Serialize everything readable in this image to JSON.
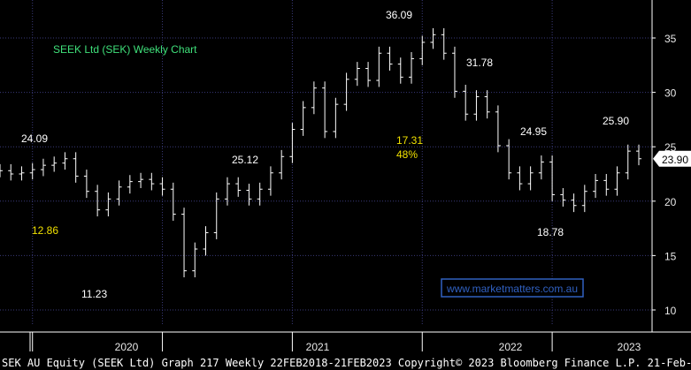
{
  "chart_data": {
    "type": "ohlc",
    "title": "SEEK Ltd (SEK) Weekly Chart",
    "watermark": "www.marketmatters.com.au",
    "footer": "SEK AU Equity (SEEK Ltd) Graph 217  Weekly 22FEB2018-21FEB2023 Copyright© 2023 Bloomberg Finance L.P. 21-Feb-2023 16:23:56",
    "ylim": [
      9,
      37
    ],
    "yticks": [
      10,
      15,
      20,
      25,
      30,
      35
    ],
    "ytick_labels": [
      "10",
      "15",
      "20",
      "25",
      "30",
      "35"
    ],
    "xtick_labels": [
      "2020",
      "2021",
      "2022",
      "2023"
    ],
    "last_price": 23.9,
    "last_price_label": "23.90",
    "colors": {
      "background": "#000000",
      "grid": "#3a3a7a",
      "bars": "#ffffff",
      "price_box": "#ffffff",
      "title": "#3fe07a",
      "highlight": "#f0e000",
      "watermark_border": "#3060c0",
      "watermark_text": "#3060c0"
    },
    "annotations": [
      {
        "text": "24.09",
        "color": "white",
        "x": "2019-04",
        "y": 24.09
      },
      {
        "text": "12.86",
        "color": "yellow",
        "x": "2019-05",
        "y": 12.86
      },
      {
        "text": "11.23",
        "color": "white",
        "x": "2020-03",
        "y": 11.23
      },
      {
        "text": "25.12",
        "color": "white",
        "x": "2020-09",
        "y": 25.12
      },
      {
        "text": "36.09",
        "color": "white",
        "x": "2021-07",
        "y": 36.09
      },
      {
        "text": "17.31",
        "color": "yellow",
        "x": "2021-07",
        "y": 17.31
      },
      {
        "text": "48%",
        "color": "yellow",
        "x": "2021-07",
        "y": 48
      },
      {
        "text": "31.78",
        "color": "white",
        "x": "2021-10",
        "y": 31.78
      },
      {
        "text": "24.95",
        "color": "white",
        "x": "2022-04",
        "y": 24.95
      },
      {
        "text": "18.78",
        "color": "white",
        "x": "2022-07",
        "y": 18.78
      },
      {
        "text": "25.90",
        "color": "white",
        "x": "2022-12",
        "y": 25.9
      }
    ],
    "series": [
      {
        "values": [
          {
            "x": "2018-10",
            "y": 22.8
          },
          {
            "x": "2018-11",
            "y": 22.5
          },
          {
            "x": "2018-12",
            "y": 22.6
          },
          {
            "x": "2019-01",
            "y": 22.9
          },
          {
            "x": "2019-02",
            "y": 23.3
          },
          {
            "x": "2019-03",
            "y": 23.5
          },
          {
            "x": "2019-04",
            "y": 23.9
          },
          {
            "x": "2019-05",
            "y": 22.3
          },
          {
            "x": "2019-06",
            "y": 20.9
          },
          {
            "x": "2019-07",
            "y": 19.2
          },
          {
            "x": "2019-08",
            "y": 20.2
          },
          {
            "x": "2019-09",
            "y": 21.3
          },
          {
            "x": "2019-10",
            "y": 21.8
          },
          {
            "x": "2019-11",
            "y": 22.0
          },
          {
            "x": "2019-12",
            "y": 21.6
          },
          {
            "x": "2020-01",
            "y": 21.1
          },
          {
            "x": "2020-02",
            "y": 18.8
          },
          {
            "x": "2020-03",
            "y": 13.6
          },
          {
            "x": "2020-04",
            "y": 15.6
          },
          {
            "x": "2020-05",
            "y": 17.1
          },
          {
            "x": "2020-06",
            "y": 20.2
          },
          {
            "x": "2020-07",
            "y": 21.6
          },
          {
            "x": "2020-08",
            "y": 21.0
          },
          {
            "x": "2020-09",
            "y": 20.2
          },
          {
            "x": "2020-10",
            "y": 21.1
          },
          {
            "x": "2020-11",
            "y": 22.6
          },
          {
            "x": "2020-12",
            "y": 24.1
          },
          {
            "x": "2021-01",
            "y": 26.6
          },
          {
            "x": "2021-02",
            "y": 28.6
          },
          {
            "x": "2021-03",
            "y": 30.4
          },
          {
            "x": "2021-04",
            "y": 26.4
          },
          {
            "x": "2021-05",
            "y": 28.9
          },
          {
            "x": "2021-06",
            "y": 31.2
          },
          {
            "x": "2021-07",
            "y": 32.2
          },
          {
            "x": "2021-08",
            "y": 31.1
          },
          {
            "x": "2021-09",
            "y": 33.6
          },
          {
            "x": "2021-10",
            "y": 32.6
          },
          {
            "x": "2021-11",
            "y": 31.4
          },
          {
            "x": "2021-12",
            "y": 33.1
          },
          {
            "x": "2022-01",
            "y": 34.6
          },
          {
            "x": "2022-02",
            "y": 35.3
          },
          {
            "x": "2022-03",
            "y": 33.6
          },
          {
            "x": "2022-04",
            "y": 30.1
          },
          {
            "x": "2022-05",
            "y": 28.0
          },
          {
            "x": "2022-06",
            "y": 29.6
          },
          {
            "x": "2022-07",
            "y": 28.2
          },
          {
            "x": "2022-08",
            "y": 25.1
          },
          {
            "x": "2022-09",
            "y": 22.6
          },
          {
            "x": "2022-10",
            "y": 21.6
          },
          {
            "x": "2022-11",
            "y": 22.6
          },
          {
            "x": "2022-12",
            "y": 23.6
          },
          {
            "x": "2023-01",
            "y": 20.6
          },
          {
            "x": "2023-02",
            "y": 20.1
          },
          {
            "x": "2023-03",
            "y": 19.6
          },
          {
            "x": "2023-04",
            "y": 20.9
          },
          {
            "x": "2023-05",
            "y": 21.9
          },
          {
            "x": "2023-06",
            "y": 21.1
          },
          {
            "x": "2023-07",
            "y": 22.6
          },
          {
            "x": "2023-08",
            "y": 24.6
          },
          {
            "x": "2023-09",
            "y": 23.9
          }
        ]
      }
    ]
  }
}
